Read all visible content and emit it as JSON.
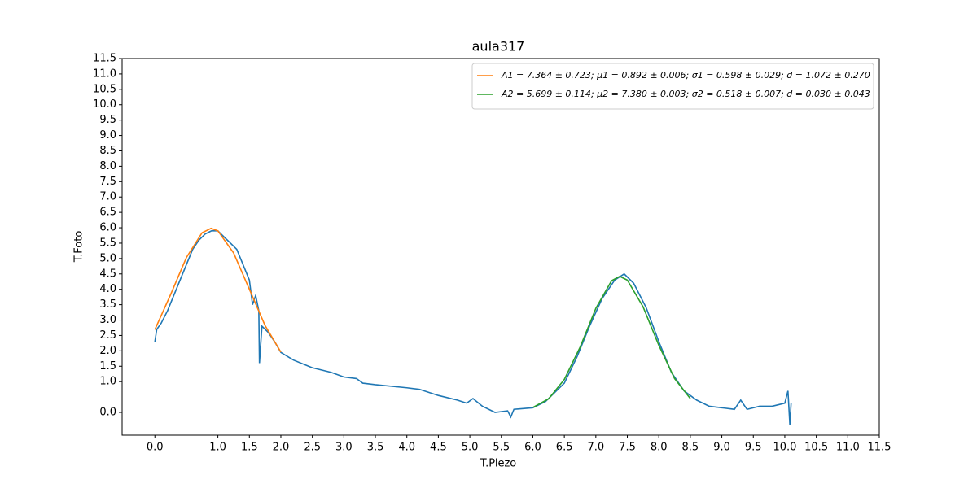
{
  "chart_data": {
    "type": "line",
    "title": "aula317",
    "x_label": "T.Piezo",
    "y_label": "T.Foto",
    "xlim": [
      -0.52,
      11.5
    ],
    "ylim": [
      -0.74,
      11.5
    ],
    "xticks": [
      {
        "value": 0,
        "label": "0.0"
      },
      {
        "value": 1,
        "label": "1.0"
      },
      1.5,
      {
        "value": 2,
        "label": "2.0"
      },
      2.5,
      {
        "value": 3,
        "label": "3.0"
      },
      3.5,
      {
        "value": 4,
        "label": "4.0"
      },
      4.5,
      {
        "value": 5,
        "label": "5.0"
      },
      5.5,
      {
        "value": 6,
        "label": "6.0"
      },
      6.5,
      {
        "value": 7,
        "label": "7.0"
      },
      7.5,
      {
        "value": 8,
        "label": "8.0"
      },
      8.5,
      {
        "value": 9,
        "label": "9.0"
      },
      9.5,
      {
        "value": 10,
        "label": "10.0"
      },
      10.5,
      {
        "value": 11,
        "label": "11.0"
      },
      11.5
    ],
    "yticks": [
      {
        "value": 0,
        "label": "0.0"
      },
      {
        "value": 1,
        "label": "1.0"
      },
      1.5,
      {
        "value": 2,
        "label": "2.0"
      },
      2.5,
      {
        "value": 3,
        "label": "3.0"
      },
      3.5,
      {
        "value": 4,
        "label": "4.0"
      },
      4.5,
      {
        "value": 5,
        "label": "5.0"
      },
      5.5,
      {
        "value": 6,
        "label": "6.0"
      },
      6.5,
      {
        "value": 7,
        "label": "7.0"
      },
      7.5,
      {
        "value": 8,
        "label": "8.0"
      },
      8.5,
      {
        "value": 9,
        "label": "9.0"
      },
      9.5,
      {
        "value": 10,
        "label": "10.0"
      },
      10.5,
      {
        "value": 11,
        "label": "11.0"
      },
      11.5
    ],
    "legend_position": "upper right",
    "series": [
      {
        "color": "#1f77b4",
        "x": [
          0,
          0.03,
          0.1,
          0.2,
          0.3,
          0.4,
          0.5,
          0.6,
          0.7,
          0.8,
          0.9,
          1.0,
          1.1,
          1.2,
          1.3,
          1.4,
          1.5,
          1.55,
          1.6,
          1.65,
          1.66,
          1.7,
          1.8,
          1.9,
          2.0,
          2.2,
          2.5,
          2.8,
          3.0,
          3.2,
          3.3,
          3.5,
          4.0,
          4.2,
          4.5,
          4.8,
          4.95,
          5.05,
          5.2,
          5.4,
          5.6,
          5.65,
          5.7,
          6.0,
          6.2,
          6.5,
          6.7,
          6.9,
          7.1,
          7.3,
          7.45,
          7.6,
          7.8,
          8.0,
          8.2,
          8.4,
          8.6,
          8.8,
          9.0,
          9.2,
          9.3,
          9.4,
          9.6,
          9.8,
          10.0,
          10.05,
          10.08,
          10.1
        ],
        "values": [
          2.3,
          2.7,
          2.9,
          3.3,
          3.8,
          4.3,
          4.8,
          5.3,
          5.6,
          5.8,
          5.9,
          5.9,
          5.7,
          5.5,
          5.3,
          4.8,
          4.3,
          3.5,
          3.8,
          3.3,
          1.6,
          2.8,
          2.6,
          2.3,
          1.95,
          1.7,
          1.45,
          1.3,
          1.15,
          1.1,
          0.95,
          0.9,
          0.8,
          0.75,
          0.55,
          0.4,
          0.3,
          0.45,
          0.2,
          0.0,
          0.05,
          -0.15,
          0.1,
          0.15,
          0.35,
          0.95,
          1.8,
          2.8,
          3.7,
          4.3,
          4.5,
          4.2,
          3.4,
          2.3,
          1.3,
          0.7,
          0.4,
          0.2,
          0.15,
          0.1,
          0.4,
          0.1,
          0.2,
          0.2,
          0.3,
          0.7,
          -0.4,
          0.3
        ]
      },
      {
        "name": "A1 = 7.364 ± 0.723; μ1 = 0.892 ± 0.006; σ1 = 0.598 ± 0.029; d = 1.072 ± 0.270",
        "color": "#ff7f0e",
        "x": [
          0,
          0.25,
          0.5,
          0.75,
          0.892,
          1.0,
          1.25,
          1.5,
          1.75,
          2.0
        ],
        "values": [
          2.69,
          3.83,
          5.03,
          5.84,
          5.98,
          5.9,
          5.18,
          4.0,
          2.82,
          1.96
        ]
      },
      {
        "name": "A2 = 5.699 ± 0.114; μ2 = 7.380 ± 0.003; σ2 = 0.518 ± 0.007; d = 0.030 ± 0.043",
        "color": "#2ca02c",
        "x": [
          6.0,
          6.25,
          6.5,
          6.75,
          7.0,
          7.25,
          7.38,
          7.5,
          7.75,
          8.0,
          8.25,
          8.5
        ],
        "values": [
          0.16,
          0.44,
          1.07,
          2.12,
          3.38,
          4.28,
          4.42,
          4.3,
          3.43,
          2.18,
          1.1,
          0.45
        ]
      }
    ]
  }
}
